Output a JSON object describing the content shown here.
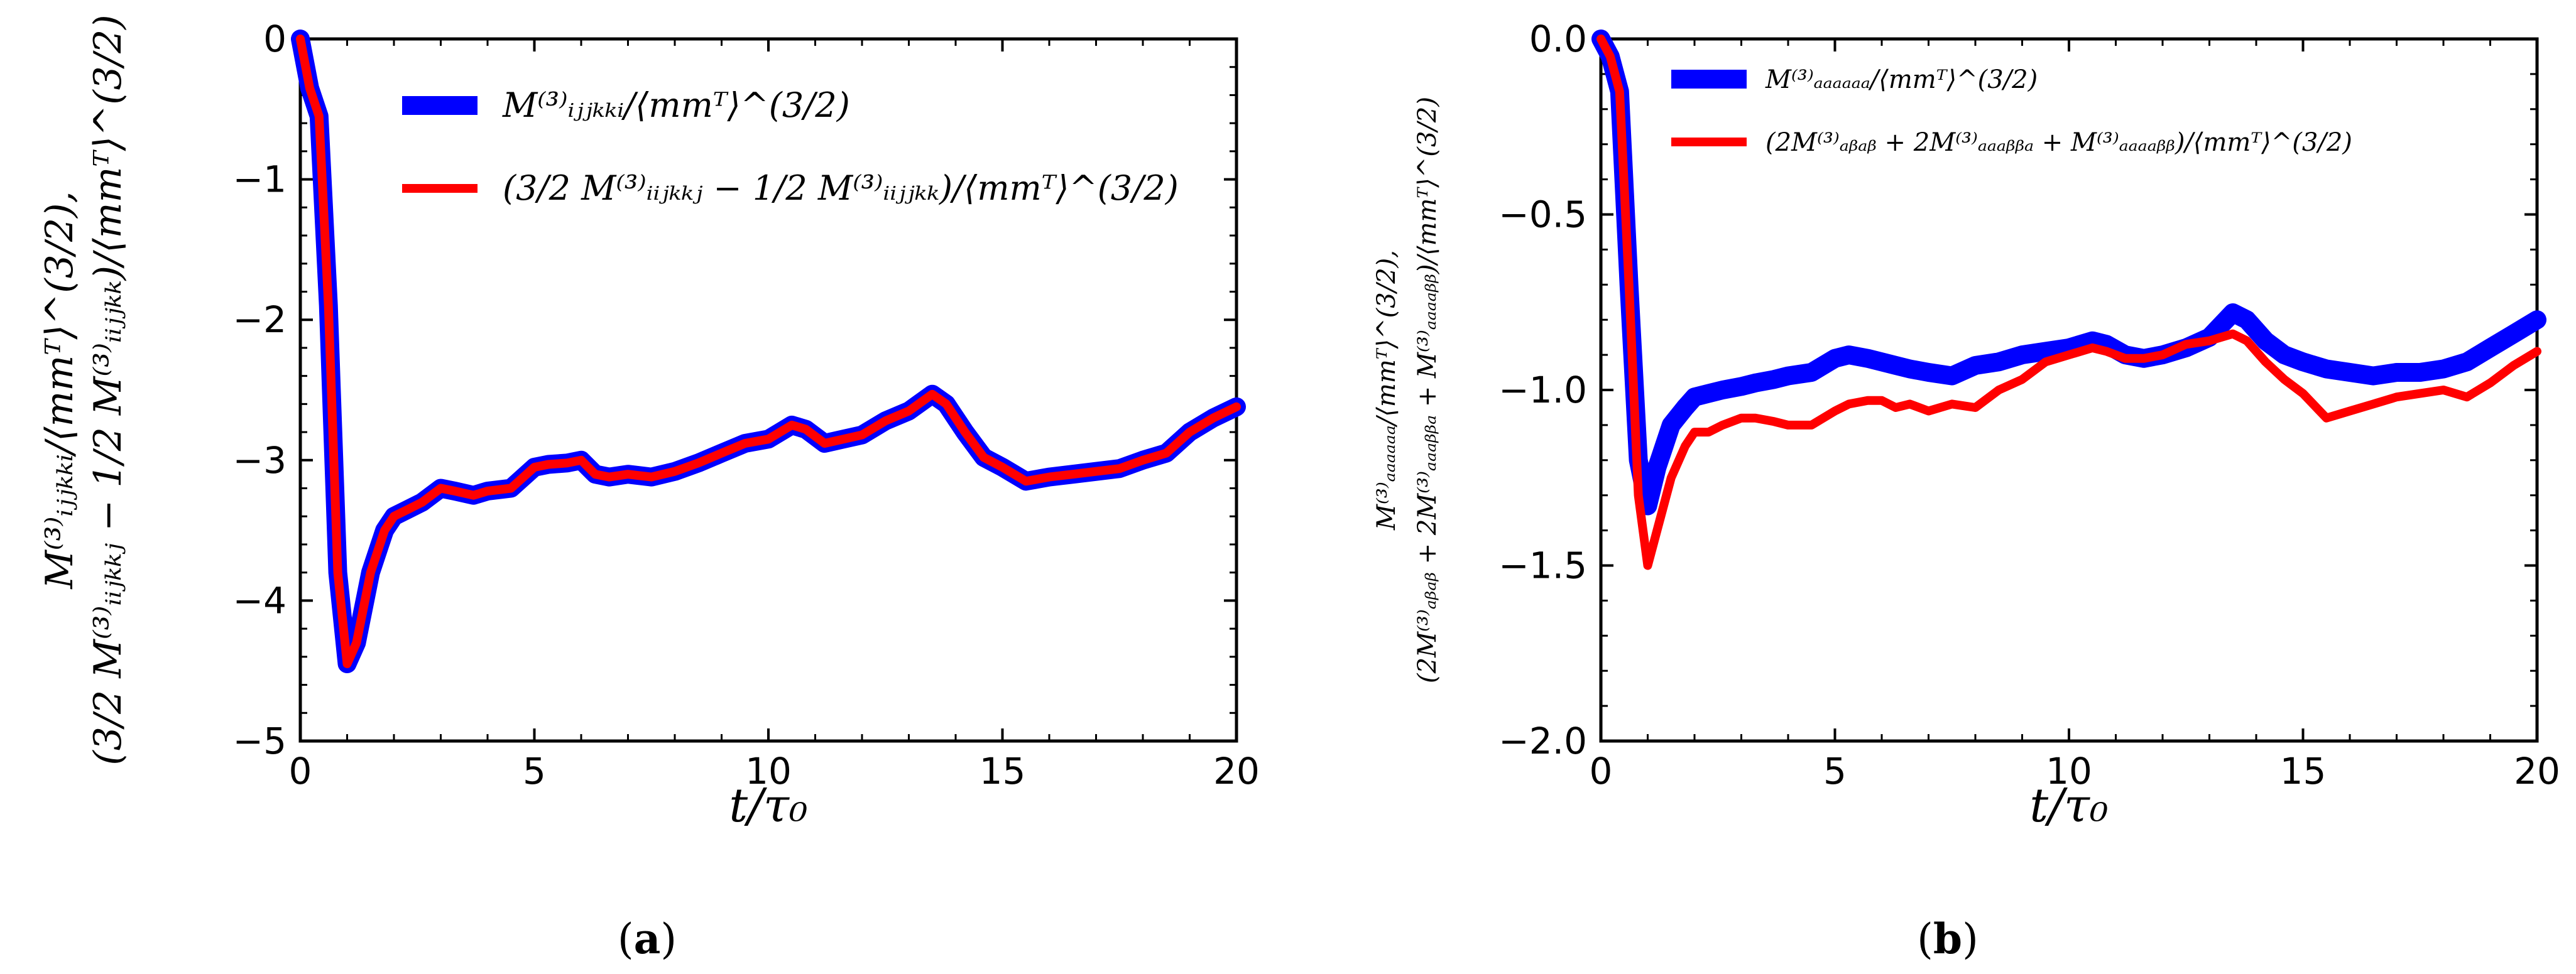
{
  "chart_data": [
    {
      "type": "line",
      "panel_label": {
        "open": "(",
        "letter": "a",
        "close": ")"
      },
      "xlabel": "t/τ₀",
      "ylabel_line1": "M⁽³⁾ᵢⱼⱼₖₖᵢ/⟨mmᵀ⟩^(3/2),",
      "ylabel_line2": "(3/2 M⁽³⁾ᵢᵢⱼₖₖⱼ − 1/2 M⁽³⁾ᵢᵢⱼⱼₖₖ)/⟨mmᵀ⟩^(3/2)",
      "xlim": [
        0,
        20
      ],
      "ylim": [
        -5,
        0
      ],
      "xticks": [
        0,
        5,
        10,
        15,
        20
      ],
      "yticks": [
        0,
        -1,
        -2,
        -3,
        -4,
        -5
      ],
      "xtick_labels": [
        "0",
        "5",
        "10",
        "15",
        "20"
      ],
      "ytick_labels": [
        "0",
        "−1",
        "−2",
        "−3",
        "−4",
        "−5"
      ],
      "legend_position": "top-right",
      "series": [
        {
          "name": "M⁽³⁾ᵢⱼⱼₖₖᵢ/⟨mmᵀ⟩^(3/2)",
          "color": "#0000ff",
          "x": [
            0,
            0.2,
            0.4,
            0.6,
            0.8,
            1.0,
            1.2,
            1.5,
            1.8,
            2.0,
            2.3,
            2.6,
            3.0,
            3.3,
            3.7,
            4.0,
            4.5,
            5.0,
            5.3,
            5.7,
            6.0,
            6.3,
            6.6,
            7.0,
            7.5,
            8.0,
            8.5,
            9.0,
            9.5,
            10.0,
            10.5,
            10.8,
            11.2,
            11.6,
            12.0,
            12.5,
            13.0,
            13.5,
            13.8,
            14.2,
            14.6,
            15.0,
            15.5,
            16.0,
            16.5,
            17.0,
            17.5,
            18.0,
            18.5,
            19.0,
            19.5,
            20.0
          ],
          "y": [
            0,
            -0.35,
            -0.55,
            -1.9,
            -3.8,
            -4.45,
            -4.3,
            -3.8,
            -3.5,
            -3.4,
            -3.35,
            -3.3,
            -3.2,
            -3.22,
            -3.25,
            -3.22,
            -3.2,
            -3.05,
            -3.03,
            -3.02,
            -3.0,
            -3.1,
            -3.12,
            -3.1,
            -3.12,
            -3.08,
            -3.02,
            -2.95,
            -2.88,
            -2.85,
            -2.75,
            -2.78,
            -2.88,
            -2.85,
            -2.82,
            -2.72,
            -2.65,
            -2.53,
            -2.6,
            -2.8,
            -2.98,
            -3.05,
            -3.15,
            -3.12,
            -3.1,
            -3.08,
            -3.06,
            -3.0,
            -2.95,
            -2.8,
            -2.7,
            -2.62
          ]
        },
        {
          "name": "(3/2 M⁽³⁾ᵢᵢⱼₖₖⱼ − 1/2 M⁽³⁾ᵢᵢⱼⱼₖₖ)/⟨mmᵀ⟩^(3/2)",
          "color": "#ff0000",
          "x": [
            0,
            0.2,
            0.4,
            0.6,
            0.8,
            1.0,
            1.2,
            1.5,
            1.8,
            2.0,
            2.3,
            2.6,
            3.0,
            3.3,
            3.7,
            4.0,
            4.5,
            5.0,
            5.3,
            5.7,
            6.0,
            6.3,
            6.6,
            7.0,
            7.5,
            8.0,
            8.5,
            9.0,
            9.5,
            10.0,
            10.5,
            10.8,
            11.2,
            11.6,
            12.0,
            12.5,
            13.0,
            13.5,
            13.8,
            14.2,
            14.6,
            15.0,
            15.5,
            16.0,
            16.5,
            17.0,
            17.5,
            18.0,
            18.5,
            19.0,
            19.5,
            20.0
          ],
          "y": [
            0,
            -0.35,
            -0.55,
            -1.9,
            -3.8,
            -4.45,
            -4.3,
            -3.8,
            -3.5,
            -3.4,
            -3.35,
            -3.3,
            -3.2,
            -3.22,
            -3.25,
            -3.22,
            -3.2,
            -3.05,
            -3.03,
            -3.02,
            -3.0,
            -3.1,
            -3.12,
            -3.1,
            -3.12,
            -3.08,
            -3.02,
            -2.95,
            -2.88,
            -2.85,
            -2.75,
            -2.78,
            -2.88,
            -2.85,
            -2.82,
            -2.72,
            -2.65,
            -2.53,
            -2.6,
            -2.8,
            -2.98,
            -3.05,
            -3.15,
            -3.12,
            -3.1,
            -3.08,
            -3.06,
            -3.0,
            -2.95,
            -2.8,
            -2.7,
            -2.62
          ]
        }
      ]
    },
    {
      "type": "line",
      "panel_label": {
        "open": "(",
        "letter": "b",
        "close": ")"
      },
      "xlabel": "t/τ₀",
      "ylabel_line1": "M⁽³⁾ₐₐₐₐₐₐ/⟨mmᵀ⟩^(3/2),",
      "ylabel_line2": "(2M⁽³⁾ₐᵦₐᵦ + 2M⁽³⁾ₐₐₐᵦᵦₐ + M⁽³⁾ₐₐₐₐᵦᵦ)/⟨mmᵀ⟩^(3/2)",
      "xlim": [
        0,
        20
      ],
      "ylim": [
        -2.0,
        0.0
      ],
      "xticks": [
        0,
        5,
        10,
        15,
        20
      ],
      "yticks": [
        0.0,
        -0.5,
        -1.0,
        -1.5,
        -2.0
      ],
      "xtick_labels": [
        "0",
        "5",
        "10",
        "15",
        "20"
      ],
      "ytick_labels": [
        "0.0",
        "−0.5",
        "−1.0",
        "−1.5",
        "−2.0"
      ],
      "legend_position": "top-left",
      "series": [
        {
          "name": "M⁽³⁾ₐₐₐₐₐₐ/⟨mmᵀ⟩^(3/2)",
          "color": "#0000ff",
          "x": [
            0,
            0.2,
            0.4,
            0.6,
            0.8,
            1.0,
            1.2,
            1.5,
            1.8,
            2.0,
            2.3,
            2.6,
            3.0,
            3.3,
            3.7,
            4.0,
            4.5,
            5.0,
            5.3,
            5.7,
            6.0,
            6.3,
            6.6,
            7.0,
            7.5,
            8.0,
            8.5,
            9.0,
            9.5,
            10.0,
            10.5,
            10.8,
            11.2,
            11.6,
            12.0,
            12.5,
            13.0,
            13.5,
            13.8,
            14.2,
            14.6,
            15.0,
            15.5,
            16.0,
            16.5,
            17.0,
            17.5,
            18.0,
            18.5,
            19.0,
            19.5,
            20.0
          ],
          "y": [
            0,
            -0.05,
            -0.15,
            -0.7,
            -1.2,
            -1.33,
            -1.22,
            -1.1,
            -1.05,
            -1.02,
            -1.01,
            -1.0,
            -0.99,
            -0.98,
            -0.97,
            -0.96,
            -0.95,
            -0.91,
            -0.9,
            -0.91,
            -0.92,
            -0.93,
            -0.94,
            -0.95,
            -0.96,
            -0.93,
            -0.92,
            -0.9,
            -0.89,
            -0.88,
            -0.86,
            -0.87,
            -0.9,
            -0.91,
            -0.9,
            -0.88,
            -0.85,
            -0.78,
            -0.8,
            -0.86,
            -0.9,
            -0.92,
            -0.94,
            -0.95,
            -0.96,
            -0.95,
            -0.95,
            -0.94,
            -0.92,
            -0.88,
            -0.84,
            -0.8
          ]
        },
        {
          "name": "(2M⁽³⁾ₐᵦₐᵦ + 2M⁽³⁾ₐₐₐᵦᵦₐ + M⁽³⁾ₐₐₐₐᵦᵦ)/⟨mmᵀ⟩^(3/2)",
          "color": "#ff0000",
          "x": [
            0,
            0.2,
            0.4,
            0.6,
            0.8,
            1.0,
            1.2,
            1.5,
            1.8,
            2.0,
            2.3,
            2.6,
            3.0,
            3.3,
            3.7,
            4.0,
            4.5,
            5.0,
            5.3,
            5.7,
            6.0,
            6.3,
            6.6,
            7.0,
            7.5,
            8.0,
            8.5,
            9.0,
            9.5,
            10.0,
            10.5,
            10.8,
            11.2,
            11.6,
            12.0,
            12.5,
            13.0,
            13.5,
            13.8,
            14.2,
            14.6,
            15.0,
            15.5,
            16.0,
            16.5,
            17.0,
            17.5,
            18.0,
            18.5,
            19.0,
            19.5,
            20.0
          ],
          "y": [
            0,
            -0.05,
            -0.15,
            -0.7,
            -1.3,
            -1.5,
            -1.4,
            -1.25,
            -1.16,
            -1.12,
            -1.12,
            -1.1,
            -1.08,
            -1.08,
            -1.09,
            -1.1,
            -1.1,
            -1.06,
            -1.04,
            -1.03,
            -1.03,
            -1.05,
            -1.04,
            -1.06,
            -1.04,
            -1.05,
            -1.0,
            -0.97,
            -0.92,
            -0.9,
            -0.88,
            -0.89,
            -0.91,
            -0.91,
            -0.9,
            -0.87,
            -0.86,
            -0.84,
            -0.86,
            -0.92,
            -0.97,
            -1.01,
            -1.08,
            -1.06,
            -1.04,
            -1.02,
            -1.01,
            -1.0,
            -1.02,
            -0.98,
            -0.93,
            -0.89
          ]
        }
      ]
    }
  ]
}
